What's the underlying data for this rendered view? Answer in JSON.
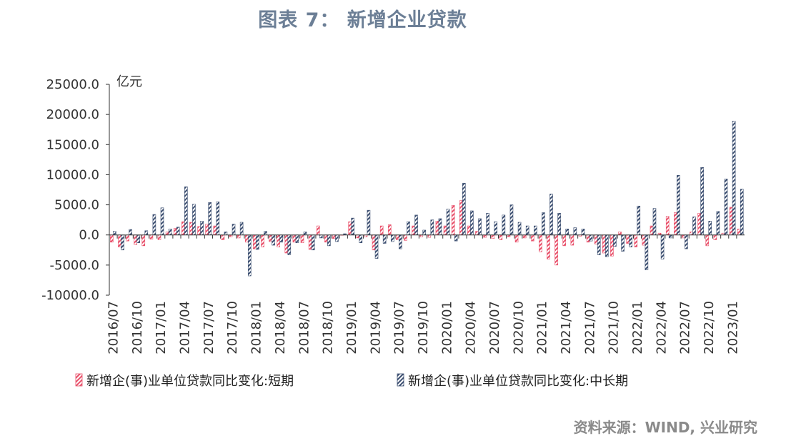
{
  "title": "图表 7： 新增企业贷款",
  "source": "资料来源：WIND, 兴业研究",
  "chart_data": {
    "type": "bar",
    "unit_label": "亿元",
    "ylim": [
      -10000,
      25000
    ],
    "yticks": [
      -10000,
      -5000,
      0,
      5000,
      10000,
      15000,
      20000,
      25000
    ],
    "ytick_labels": [
      "-10000.0",
      "-5000.0",
      "0.0",
      "5000.0",
      "10000.0",
      "15000.0",
      "20000.0",
      "25000.0"
    ],
    "categories": [
      "2016/07",
      "2016/08",
      "2016/09",
      "2016/10",
      "2016/11",
      "2016/12",
      "2017/01",
      "2017/02",
      "2017/03",
      "2017/04",
      "2017/05",
      "2017/06",
      "2017/07",
      "2017/08",
      "2017/09",
      "2017/10",
      "2017/11",
      "2017/12",
      "2018/01",
      "2018/02",
      "2018/03",
      "2018/04",
      "2018/05",
      "2018/06",
      "2018/07",
      "2018/08",
      "2018/09",
      "2018/10",
      "2018/11",
      "2018/12",
      "2019/01",
      "2019/02",
      "2019/03",
      "2019/04",
      "2019/05",
      "2019/06",
      "2019/07",
      "2019/08",
      "2019/09",
      "2019/10",
      "2019/11",
      "2019/12",
      "2020/01",
      "2020/02",
      "2020/03",
      "2020/04",
      "2020/05",
      "2020/06",
      "2020/07",
      "2020/08",
      "2020/09",
      "2020/10",
      "2020/11",
      "2020/12",
      "2021/01",
      "2021/02",
      "2021/03",
      "2021/04",
      "2021/05",
      "2021/06",
      "2021/07",
      "2021/08",
      "2021/09",
      "2021/10",
      "2021/11",
      "2021/12",
      "2022/01",
      "2022/02",
      "2022/03",
      "2022/04",
      "2022/05",
      "2022/06",
      "2022/07",
      "2022/08",
      "2022/09",
      "2022/10",
      "2022/11",
      "2022/12",
      "2023/01",
      "2023/02"
    ],
    "xtick_labels": [
      "2016/07",
      "2016/10",
      "2017/01",
      "2017/04",
      "2017/07",
      "2017/10",
      "2018/01",
      "2018/04",
      "2018/07",
      "2018/10",
      "2019/01",
      "2019/04",
      "2019/07",
      "2019/10",
      "2020/01",
      "2020/04",
      "2020/07",
      "2020/10",
      "2021/01",
      "2021/04",
      "2021/07",
      "2021/10",
      "2022/01",
      "2022/04",
      "2022/07",
      "2022/10",
      "2023/01"
    ],
    "series": [
      {
        "name": "新增企(事)业单位贷款同比变化:短期",
        "color": "#e8506a",
        "values": [
          -1200,
          -2000,
          -1000,
          -1600,
          -1800,
          -700,
          -800,
          500,
          1100,
          2200,
          2100,
          1400,
          1800,
          1500,
          -800,
          -300,
          -500,
          -1200,
          -2300,
          -2000,
          -1100,
          -2000,
          -3000,
          -1200,
          -1300,
          -2400,
          1500,
          -1200,
          -600,
          0,
          2200,
          -500,
          -300,
          -2500,
          1500,
          1700,
          -800,
          -900,
          1500,
          -300,
          -400,
          2300,
          1500,
          4900,
          5700,
          1500,
          600,
          -400,
          -600,
          -800,
          -300,
          -1200,
          -500,
          -1000,
          -2800,
          -4000,
          -5000,
          -1800,
          -1700,
          -200,
          -1200,
          -1500,
          -3000,
          -3500,
          500,
          -1400,
          -2000,
          -1700,
          1500,
          300,
          3100,
          3700,
          -500,
          500,
          3600,
          -1800,
          -800,
          300,
          4600,
          1000
        ]
      },
      {
        "name": "新增企(事)业单位贷款同比变化:中长期",
        "color": "#3b4e70",
        "values": [
          600,
          -2500,
          900,
          -1300,
          700,
          3400,
          4500,
          1000,
          1300,
          8000,
          5100,
          2300,
          5400,
          5500,
          500,
          1800,
          2100,
          -6800,
          -2400,
          600,
          -1700,
          -1200,
          -3300,
          -1300,
          500,
          -2500,
          -500,
          -1800,
          -1100,
          200,
          2800,
          -1300,
          4100,
          -3900,
          -1400,
          -1100,
          -2300,
          2200,
          3300,
          800,
          2500,
          2700,
          4300,
          -1000,
          8600,
          4000,
          2700,
          3600,
          2200,
          3300,
          5000,
          2100,
          1500,
          1500,
          3700,
          6800,
          3600,
          1000,
          1200,
          1000,
          -1000,
          -3300,
          -3600,
          -1900,
          -2700,
          -2000,
          4800,
          -5800,
          4400,
          -4000,
          -500,
          9900,
          -2300,
          3000,
          11200,
          2300,
          3900,
          9300,
          18900,
          7600
        ]
      }
    ]
  }
}
